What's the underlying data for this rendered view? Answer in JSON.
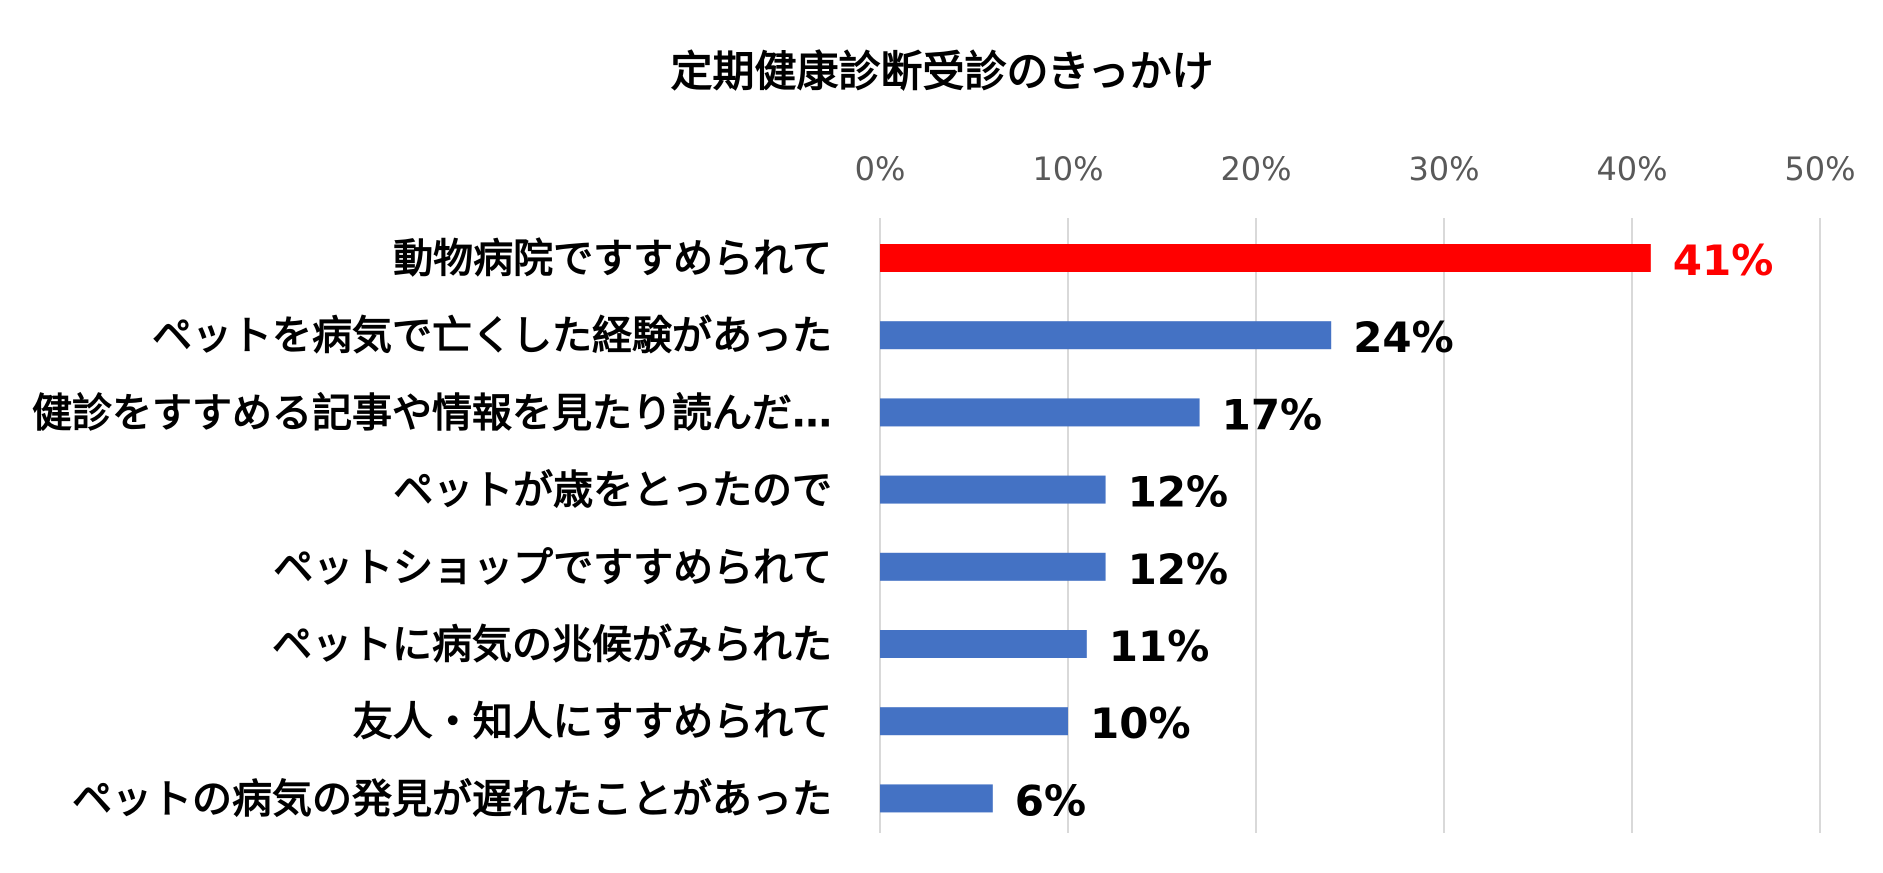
{
  "chart_data": {
    "type": "bar",
    "orientation": "horizontal",
    "title": "定期健康診断受診のきっかけ",
    "xlabel": "",
    "ylabel": "",
    "xlim": [
      0,
      50
    ],
    "x_ticks": [
      0,
      10,
      20,
      30,
      40,
      50
    ],
    "x_tick_labels": [
      "0%",
      "10%",
      "20%",
      "30%",
      "40%",
      "50%"
    ],
    "tick_axis_position": "top",
    "grid": true,
    "legend": false,
    "categories": [
      "動物病院ですすめられて",
      "ペットを病気で亡くした経験があった",
      "健診をすすめる記事や情報を見たり読んだ…",
      "ペットが歳をとったので",
      "ペットショップですすめられて",
      "ペットに病気の兆候がみられた",
      "友人・知人にすすめられて",
      "ペットの病気の発見が遅れたことがあった"
    ],
    "values": [
      41,
      24,
      17,
      12,
      12,
      11,
      10,
      6
    ],
    "value_labels": [
      "41%",
      "24%",
      "17%",
      "12%",
      "12%",
      "11%",
      "10%",
      "6%"
    ],
    "colors": {
      "highlight": "#FF0000",
      "bar": "#4472C4",
      "grid": "#D9D9D9",
      "tick_text": "#595959",
      "label_text": "#000000"
    },
    "highlight_index": 0
  }
}
